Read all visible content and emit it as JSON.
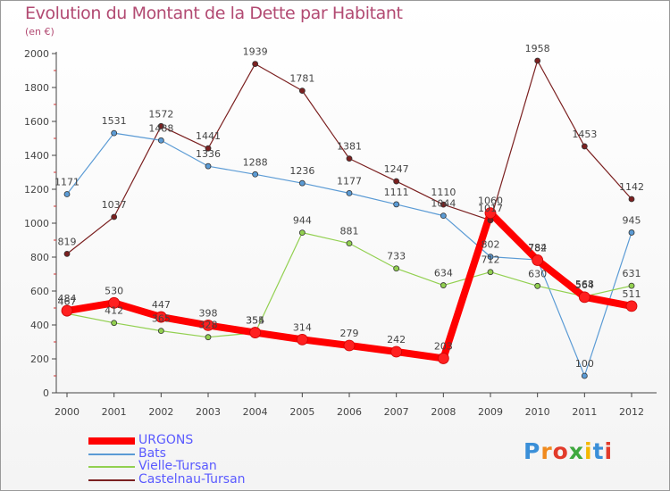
{
  "title": "Evolution du Montant de la Dette par Habitant",
  "unit_label": "(en €)",
  "logo": {
    "letters": [
      "P",
      "r",
      "o",
      "x",
      "i",
      "t",
      "i"
    ],
    "colors": [
      "#3a8fd8",
      "#f08a1e",
      "#e23b2b",
      "#3fa83f",
      "#f5b800",
      "#3a8fd8",
      "#e23b2b"
    ]
  },
  "chart_data": {
    "type": "line",
    "title": "Evolution du Montant de la Dette par Habitant",
    "xlabel": "",
    "ylabel": "(en €)",
    "ylim": [
      0,
      2000
    ],
    "yticks": [
      0,
      200,
      400,
      600,
      800,
      1000,
      1200,
      1400,
      1600,
      1800,
      2000
    ],
    "grid": false,
    "legend_position": "bottom-left",
    "x": [
      "2000",
      "2001",
      "2002",
      "2003",
      "2004",
      "2005",
      "2006",
      "2007",
      "2008",
      "2009",
      "2010",
      "2011",
      "2012"
    ],
    "series": [
      {
        "name": "URGONS",
        "color": "#ff0000",
        "values": [
          484,
          530,
          447,
          398,
          355,
          314,
          279,
          242,
          203,
          1060,
          782,
          564,
          511
        ]
      },
      {
        "name": "Bats",
        "color": "#5b9bd5",
        "values": [
          1171,
          1531,
          1488,
          1336,
          1288,
          1236,
          1177,
          1111,
          1044,
          802,
          784,
          100,
          945
        ]
      },
      {
        "name": "Vielle-Tursan",
        "color": "#92d050",
        "values": [
          467,
          412,
          365,
          328,
          354,
          944,
          881,
          733,
          634,
          712,
          630,
          568,
          631
        ]
      },
      {
        "name": "Castelnau-Tursan",
        "color": "#7b2020",
        "values": [
          819,
          1037,
          1572,
          1441,
          1939,
          1781,
          1381,
          1247,
          1110,
          1017,
          1958,
          1453,
          1142
        ]
      }
    ]
  }
}
